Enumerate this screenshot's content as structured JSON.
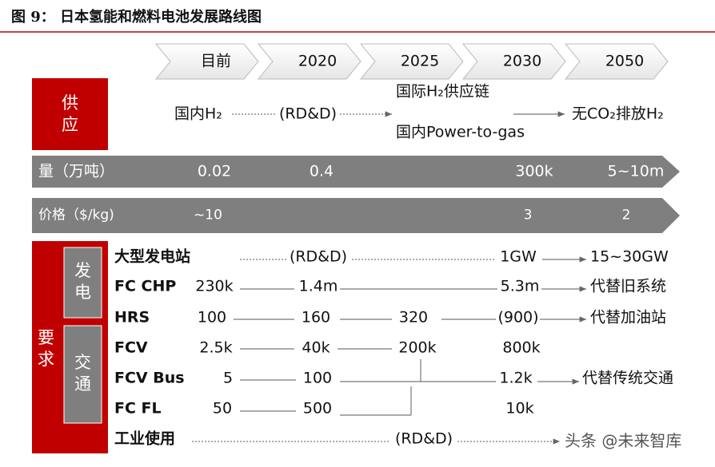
{
  "header": {
    "title": "图 9： 日本氢能和燃料电池发展路线图"
  },
  "timeline": [
    "目前",
    "2020",
    "2025",
    "2030",
    "2050"
  ],
  "supply": {
    "label": "供应",
    "items": [
      "国内H₂",
      "(RD&D)",
      "国际H₂供应链",
      "国内Power-to-gas",
      "无CO₂排放H₂"
    ]
  },
  "volume": {
    "label": "量（万吨）",
    "values": [
      "0.02",
      "0.4",
      "300k",
      "5~10m"
    ]
  },
  "price": {
    "label": "价格（$/kg)",
    "values": [
      "~10",
      "3",
      "2"
    ]
  },
  "demand": {
    "label": "要求",
    "groups": [
      "发电",
      "交通"
    ],
    "rows": [
      {
        "label": "大型发电站",
        "cells": [
          "(RD&D)",
          "1GW",
          "15~30GW"
        ]
      },
      {
        "label": "FC CHP",
        "cells": [
          "230k",
          "1.4m",
          "5.3m",
          "代替旧系统"
        ]
      },
      {
        "label": "HRS",
        "cells": [
          "100",
          "160",
          "320",
          "(900)",
          "代替加油站"
        ]
      },
      {
        "label": "FCV",
        "cells": [
          "2.5k",
          "40k",
          "200k",
          "800k"
        ]
      },
      {
        "label": "FCV Bus",
        "cells": [
          "5",
          "100",
          "1.2k",
          "代替传统交通"
        ]
      },
      {
        "label": "FC FL",
        "cells": [
          "50",
          "500",
          "10k"
        ]
      },
      {
        "label": "工业使用",
        "cells": [
          "(RD&D)"
        ]
      }
    ]
  },
  "watermark": "头条 @未来智库"
}
